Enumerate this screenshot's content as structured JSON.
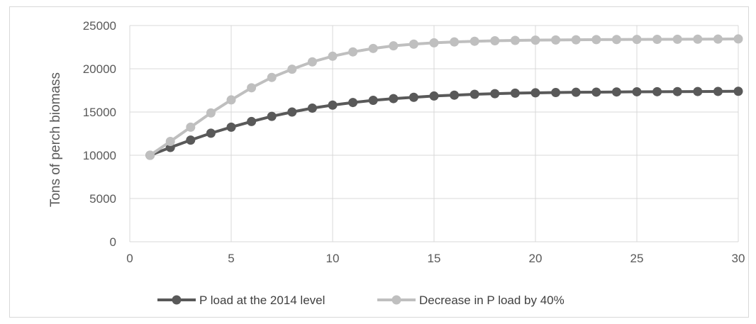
{
  "chart_data": {
    "type": "line",
    "title": "",
    "xlabel": "",
    "ylabel": "Tons of perch biomass",
    "xlim": [
      0,
      30
    ],
    "ylim": [
      0,
      25000
    ],
    "x_ticks": [
      0,
      5,
      10,
      15,
      20,
      25,
      30
    ],
    "y_ticks": [
      0,
      5000,
      10000,
      15000,
      20000,
      25000
    ],
    "grid": true,
    "legend_position": "bottom",
    "x": [
      1,
      2,
      3,
      4,
      5,
      6,
      7,
      8,
      9,
      10,
      11,
      12,
      13,
      14,
      15,
      16,
      17,
      18,
      19,
      20,
      21,
      22,
      23,
      24,
      25,
      26,
      27,
      28,
      29,
      30
    ],
    "series": [
      {
        "name": "P load at the 2014 level",
        "color": "#595959",
        "values": [
          10000,
          10900,
          11750,
          12550,
          13250,
          13900,
          14500,
          15000,
          15450,
          15800,
          16100,
          16350,
          16550,
          16700,
          16850,
          16950,
          17050,
          17120,
          17180,
          17220,
          17250,
          17280,
          17300,
          17320,
          17340,
          17350,
          17360,
          17370,
          17380,
          17400
        ]
      },
      {
        "name": "Decrease in P load by 40%",
        "color": "#bfbfbf",
        "values": [
          10000,
          11600,
          13250,
          14900,
          16400,
          17800,
          19000,
          19950,
          20800,
          21450,
          21950,
          22350,
          22650,
          22850,
          23000,
          23100,
          23180,
          23240,
          23280,
          23310,
          23330,
          23350,
          23370,
          23380,
          23390,
          23400,
          23410,
          23420,
          23430,
          23450
        ]
      }
    ]
  }
}
